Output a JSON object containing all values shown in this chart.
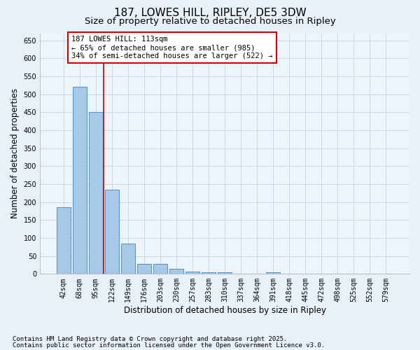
{
  "title1": "187, LOWES HILL, RIPLEY, DE5 3DW",
  "title2": "Size of property relative to detached houses in Ripley",
  "xlabel": "Distribution of detached houses by size in Ripley",
  "ylabel": "Number of detached properties",
  "categories": [
    "42sqm",
    "68sqm",
    "95sqm",
    "122sqm",
    "149sqm",
    "176sqm",
    "203sqm",
    "230sqm",
    "257sqm",
    "283sqm",
    "310sqm",
    "337sqm",
    "364sqm",
    "391sqm",
    "418sqm",
    "445sqm",
    "472sqm",
    "498sqm",
    "525sqm",
    "552sqm",
    "579sqm"
  ],
  "values": [
    185,
    520,
    450,
    235,
    85,
    28,
    27,
    14,
    7,
    5,
    5,
    0,
    0,
    5,
    0,
    0,
    0,
    1,
    0,
    0,
    1
  ],
  "bar_color": "#a8c8e8",
  "bar_edge_color": "#5599cc",
  "bar_edge_width": 0.8,
  "vline_x": 2.5,
  "vline_color": "#cc0000",
  "vline_linewidth": 1.2,
  "annotation_line1": "187 LOWES HILL: 113sqm",
  "annotation_line2": "← 65% of detached houses are smaller (985)",
  "annotation_line3": "34% of semi-detached houses are larger (522) →",
  "annotation_box_color": "#ffffff",
  "annotation_border_color": "#cc0000",
  "ylim": [
    0,
    670
  ],
  "yticks": [
    0,
    50,
    100,
    150,
    200,
    250,
    300,
    350,
    400,
    450,
    500,
    550,
    600,
    650
  ],
  "grid_color": "#c8d8e8",
  "background_color": "#e8f0f8",
  "plot_bg_color": "#eef4fb",
  "footnote1": "Contains HM Land Registry data © Crown copyright and database right 2025.",
  "footnote2": "Contains public sector information licensed under the Open Government Licence v3.0.",
  "title1_fontsize": 11,
  "title2_fontsize": 9.5,
  "tick_fontsize": 7,
  "label_fontsize": 8.5,
  "annotation_fontsize": 7.5,
  "footnote_fontsize": 6.5
}
